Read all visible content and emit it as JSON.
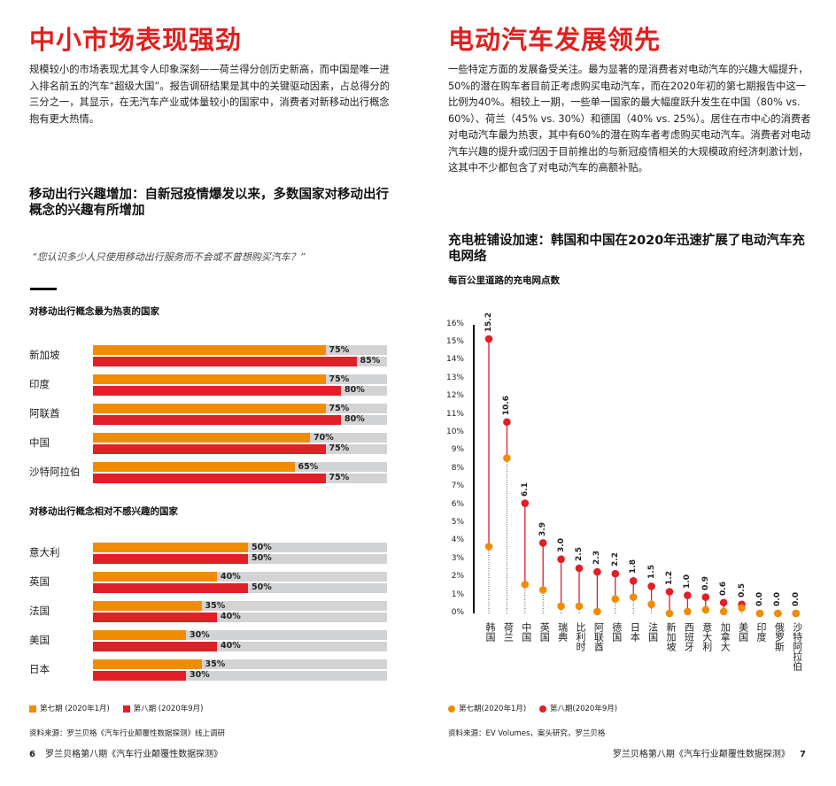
{
  "left": {
    "title": "中小市场表现强劲",
    "paragraph": "规模较小的市场表现尤其令人印象深刻——荷兰得分创历史新高，而中国是唯一进入排名前五的汽车“超级大国”。报告调研结果是其中的关键驱动因素，占总得分的三分之一，其显示，在无汽车产业或体量较小的国家中，消费者对新移动出行概念抱有更大热情。",
    "heading": "移动出行兴趣增加：自新冠疫情爆发以来，多数国家对移动出行概念的兴趣有所增加",
    "quote": "“您认识多少人只使用移动出行服务而不会或不曾想购买汽车？”",
    "source": "资料来源：罗兰贝格《汽车行业颠覆性数据探测》线上调研",
    "page_number": "6",
    "footer": "罗兰贝格第八期《汽车行业颠覆性数据探测》"
  },
  "right": {
    "title": "电动汽车发展领先",
    "paragraph": "一些特定方面的发展备受关注。最为显著的是消费者对电动汽车的兴趣大幅提升，50%的潜在购车者目前正考虑购买电动汽车，而在2020年初的第七期报告中这一比例为40%。相较上一期，一些单一国家的最大幅度跃升发生在中国（80% vs. 60%）、荷兰（45% vs. 30%）和德国（40% vs. 25%）。居住在市中心的消费者对电动汽车最为热衷，其中有60%的潜在购车者考虑购买电动汽车。消费者对电动汽车兴趣的提升或归因于目前推出的与新冠疫情相关的大规模政府经济刺激计划，这其中不少都包含了对电动汽车的高额补贴。",
    "heading": "充电桩铺设加速：韩国和中国在2020年迅速扩展了电动汽车充电网络",
    "source": "资料来源：EV Volumes，案头研究，罗兰贝格",
    "page_number": "7",
    "footer": "罗兰贝格第八期《汽车行业颠覆性数据探测》"
  },
  "colors": {
    "accent": "#e0201f",
    "orange": "#f08c00",
    "red": "#e01f26",
    "track": "#d1d3d4"
  },
  "chart_data": [
    {
      "type": "bar",
      "title": "对移动出行概念最为热衷的国家",
      "categories": [
        "新加坡",
        "印度",
        "阿联酋",
        "中国",
        "沙特阿拉伯"
      ],
      "series": [
        {
          "name": "第七期（2020年1月）",
          "values": [
            75,
            75,
            75,
            70,
            65
          ]
        },
        {
          "name": "第八期（2020年9月）",
          "values": [
            85,
            80,
            80,
            75,
            75
          ]
        }
      ],
      "unit": "%",
      "legend": "bottom-left"
    },
    {
      "type": "bar",
      "title": "对移动出行概念相对不感兴趣的国家",
      "categories": [
        "意大利",
        "英国",
        "法国",
        "美国",
        "日本"
      ],
      "series": [
        {
          "name": "第七期（2020年1月）",
          "values": [
            50,
            40,
            35,
            30,
            35
          ]
        },
        {
          "name": "第八期（2020年9月）",
          "values": [
            50,
            50,
            40,
            40,
            30
          ]
        }
      ],
      "unit": "%",
      "legend": "bottom-left"
    },
    {
      "type": "scatter",
      "title": "每百公里道路的充电网点数",
      "categories": [
        "韩国",
        "荷兰",
        "中国",
        "英国",
        "瑞典",
        "比利时",
        "阿联酋",
        "德国",
        "日本",
        "法国",
        "新加坡",
        "西班牙",
        "意大利",
        "加拿大",
        "美国",
        "印度",
        "俄罗斯",
        "沙特阿拉伯"
      ],
      "series": [
        {
          "name": "第七期(2020年1月)",
          "values": [
            3.7,
            8.6,
            1.6,
            1.3,
            0.4,
            0.4,
            0.1,
            0.8,
            0.9,
            0.5,
            0.0,
            0.1,
            0.2,
            0.1,
            0.3,
            0.0,
            0.0,
            0.0
          ]
        },
        {
          "name": "第八期(2020年9月)",
          "values": [
            15.2,
            10.6,
            6.1,
            3.9,
            3.0,
            2.5,
            2.3,
            2.2,
            1.8,
            1.5,
            1.2,
            1.0,
            0.9,
            0.6,
            0.5,
            0.0,
            0.0,
            0.0
          ]
        }
      ],
      "data_labels": [
        "15.2",
        "10.6",
        "6.1",
        "3.9",
        "3.0",
        "2.5",
        "2.3",
        "2.2",
        "1.8",
        "1.5",
        "1.2",
        "1.0",
        "0.9",
        "0.6",
        "0.5",
        "0.0",
        "0.0",
        "0.0"
      ],
      "yticks": [
        "0%",
        "1%",
        "2%",
        "3%",
        "4%",
        "5%",
        "6%",
        "7%",
        "8%",
        "9%",
        "10%",
        "11%",
        "12%",
        "13%",
        "14%",
        "15%",
        "16%"
      ],
      "ylim": [
        0,
        16
      ],
      "legend": "bottom-left"
    }
  ],
  "legend_bar": {
    "s1": "第七期 (2020年1月)",
    "s2": "第八期 (2020年9月)"
  },
  "legend_dot": {
    "s1": "第七期(2020年1月)",
    "s2": "第八期(2020年9月)"
  }
}
